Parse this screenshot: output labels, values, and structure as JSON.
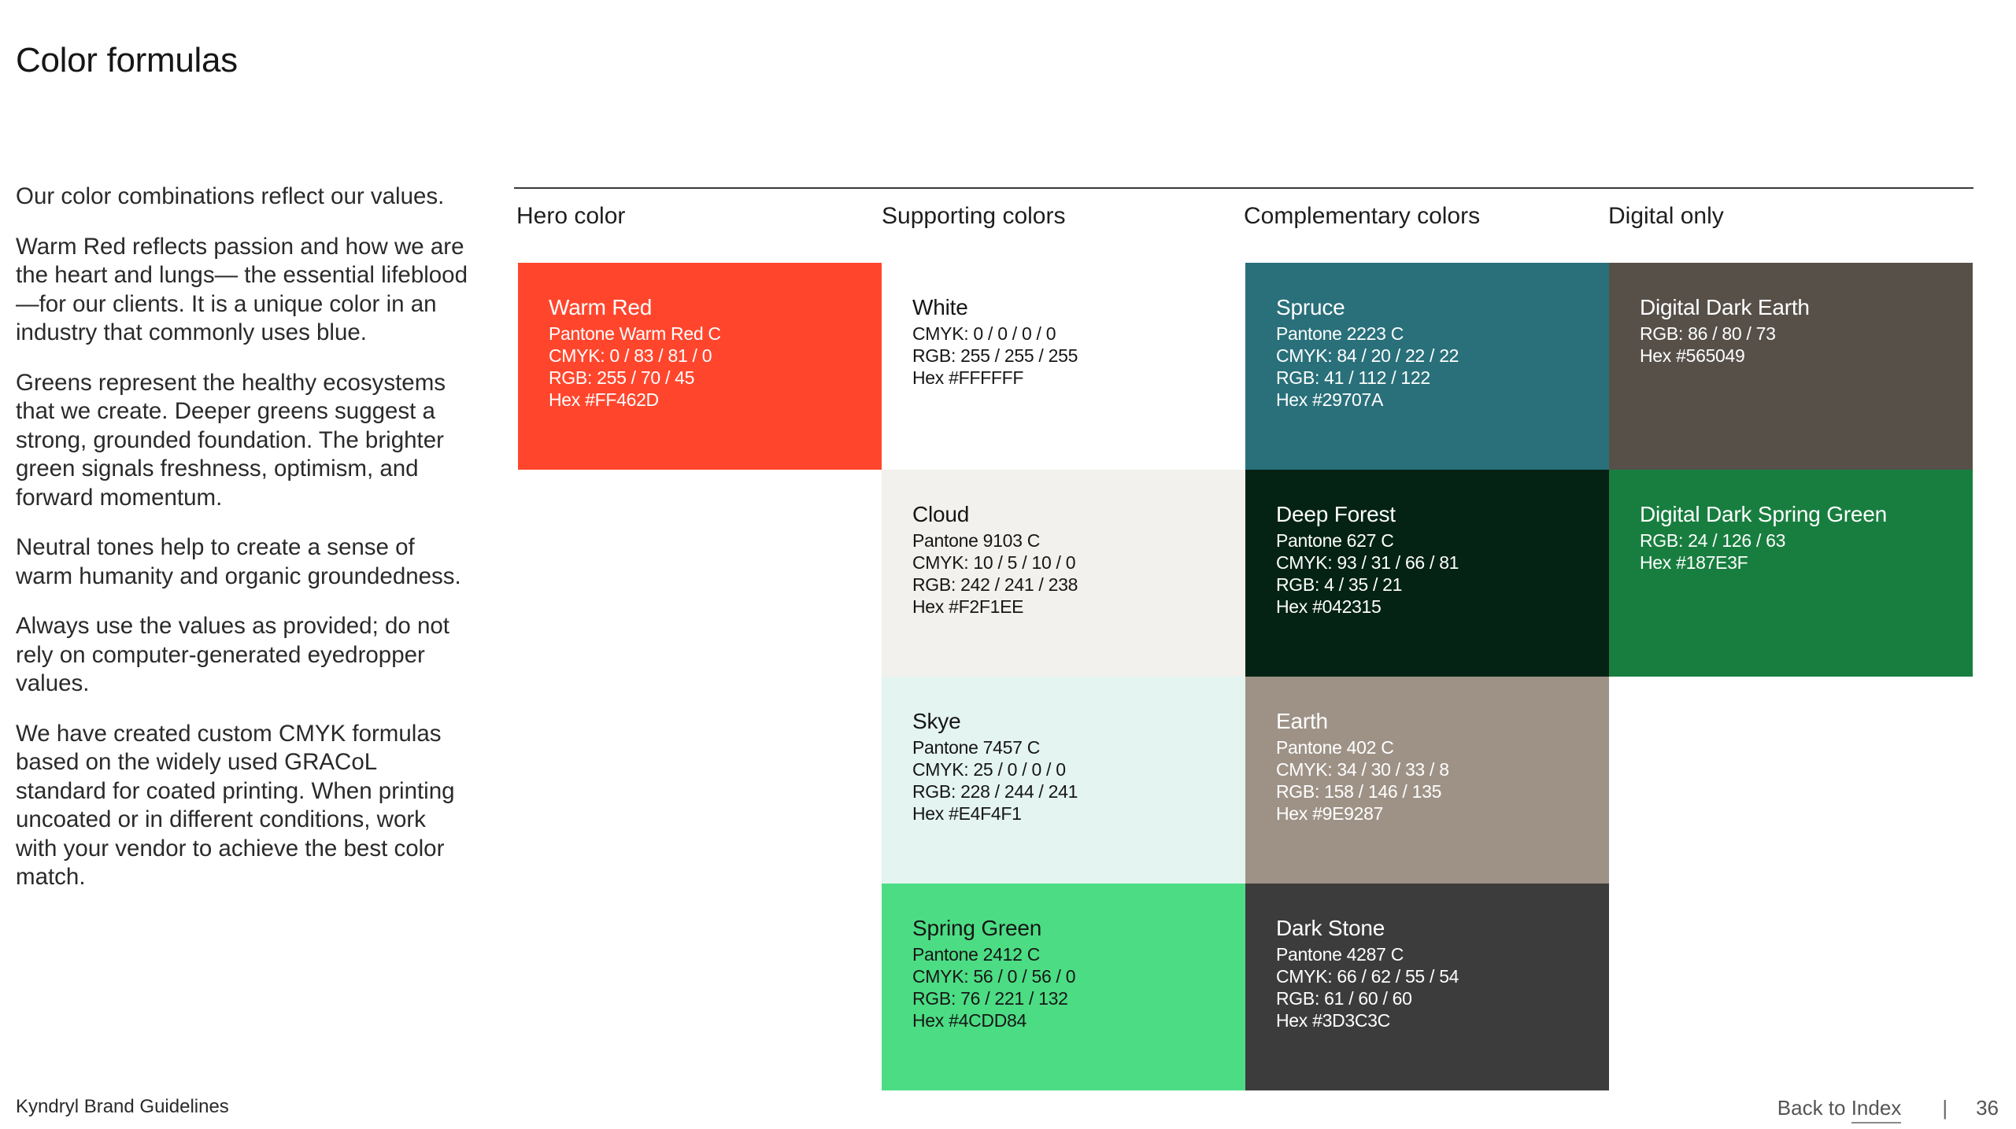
{
  "page": {
    "title": "Color formulas"
  },
  "intro": {
    "paragraphs": [
      "Our color combinations reflect our values.",
      "Warm Red reflects passion and how we are the heart and lungs— the essential lifeblood—for our clients. It is a unique color in an industry that commonly uses blue.",
      "Greens represent the healthy ecosystems that we create. Deeper greens suggest a strong, grounded foundation. The brighter green signals freshness, optimism, and forward momentum.",
      "Neutral tones help to create a sense of warm humanity and organic groundedness.",
      "Always use the values as provided; do not rely on computer-generated eyedropper values.",
      "We have created custom CMYK formulas based on the widely used GRACoL standard for coated printing. When printing uncoated or in different conditions, work with your vendor to achieve the best color match."
    ]
  },
  "columns": {
    "hero": "Hero color",
    "supporting": "Supporting colors",
    "complementary": "Complementary colors",
    "digital": "Digital only"
  },
  "swatches": {
    "warm_red": {
      "name": "Warm Red",
      "pantone": "Pantone Warm Red C",
      "cmyk": "CMYK: 0 / 83 / 81 / 0",
      "rgb": "RGB:  255 / 70 / 45",
      "hex": "Hex #FF462D",
      "bg": "#FF462D",
      "fg": "#FFFFFF"
    },
    "white": {
      "name": "White",
      "cmyk": "CMYK: 0 / 0 / 0 / 0",
      "rgb": "RGB: 255 / 255 / 255",
      "hex": "Hex #FFFFFF",
      "bg": "#FFFFFF",
      "fg": "#161616"
    },
    "cloud": {
      "name": "Cloud",
      "pantone": "Pantone 9103 C",
      "cmyk": "CMYK: 10 / 5 / 10 / 0",
      "rgb": "RGB: 242 / 241 / 238",
      "hex": "Hex #F2F1EE",
      "bg": "#F2F1EE",
      "fg": "#161616"
    },
    "skye": {
      "name": "Skye",
      "pantone": "Pantone 7457 C",
      "cmyk": "CMYK: 25 / 0 / 0 / 0",
      "rgb": "RGB: 228 / 244 / 241",
      "hex": "Hex #E4F4F1",
      "bg": "#E4F4F1",
      "fg": "#161616"
    },
    "spring_green": {
      "name": "Spring Green",
      "pantone": "Pantone 2412 C",
      "cmyk": "CMYK: 56 / 0 / 56 / 0",
      "rgb": "RGB: 76 / 221 / 132",
      "hex": "Hex #4CDD84",
      "bg": "#4CDD84",
      "fg": "#161616"
    },
    "spruce": {
      "name": "Spruce",
      "pantone": "Pantone 2223 C",
      "cmyk": "CMYK: 84 / 20 / 22 / 22",
      "rgb": "RGB: 41 / 112 / 122",
      "hex": "Hex #29707A",
      "bg": "#29707A",
      "fg": "#FFFFFF"
    },
    "deep_forest": {
      "name": "Deep Forest",
      "pantone": "Pantone 627 C",
      "cmyk": "CMYK: 93 / 31 / 66 / 81",
      "rgb": "RGB: 4 / 35 / 21",
      "hex": "Hex #042315",
      "bg": "#042315",
      "fg": "#FFFFFF"
    },
    "earth": {
      "name": "Earth",
      "pantone": "Pantone 402 C",
      "cmyk": "CMYK: 34 / 30 / 33 / 8",
      "rgb": "RGB: 158 / 146 / 135",
      "hex": "Hex #9E9287",
      "bg": "#9E9287",
      "fg": "#FFFFFF"
    },
    "dark_stone": {
      "name": "Dark Stone",
      "pantone": "Pantone 4287 C",
      "cmyk": "CMYK: 66 / 62 / 55 / 54",
      "rgb": "RGB: 61 / 60 / 60",
      "hex": "Hex #3D3C3C",
      "bg": "#3D3C3C",
      "fg": "#FFFFFF"
    },
    "digital_dark_earth": {
      "name": "Digital Dark Earth",
      "rgb": "RGB:  86 / 80 / 73",
      "hex": "Hex #565049",
      "bg": "#565049",
      "fg": "#FFFFFF"
    },
    "digital_dark_spring_green": {
      "name": "Digital Dark Spring Green",
      "rgb": "RGB: 24 / 126 / 63",
      "hex": "Hex #187E3F",
      "bg": "#187E3F",
      "fg": "#FFFFFF"
    }
  },
  "footer": {
    "brand": "Kyndryl Brand Guidelines",
    "back_prefix": "Back to ",
    "back_link": "Index",
    "divider": "|",
    "page_number": "36"
  }
}
